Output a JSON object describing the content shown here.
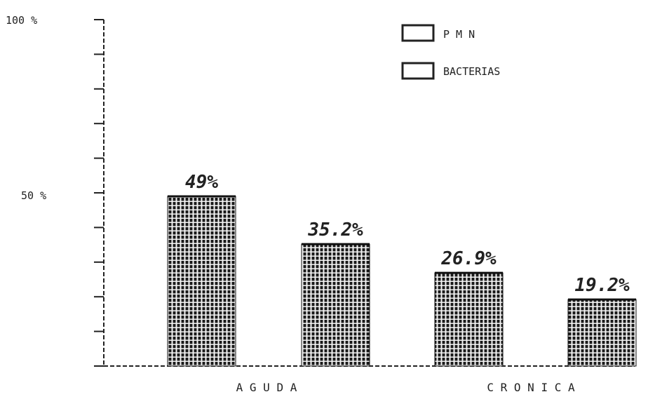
{
  "chart_data": {
    "type": "bar",
    "title": "",
    "xlabel": "",
    "ylabel": "",
    "ylim": [
      0,
      100
    ],
    "y_tick_labels": [
      "100 %",
      "50 %"
    ],
    "legend": {
      "placement": "top-right",
      "entries": [
        "P M N",
        "BACTERIAS"
      ]
    },
    "groups": [
      {
        "label": "A G U D A",
        "categories": [
          "P M N",
          "BACTERIAS"
        ]
      },
      {
        "label": "C R O N I C A",
        "categories": [
          "P M N",
          "BACTERIAS"
        ]
      }
    ],
    "bars": [
      {
        "group": "A G U D A",
        "series": "P M N",
        "value": 49,
        "label": "49%"
      },
      {
        "group": "A G U D A",
        "series": "BACTERIAS",
        "value": 35.2,
        "label": "35.2%"
      },
      {
        "group": "C R O N I C A",
        "series": "P M N",
        "value": 26.9,
        "label": "26.9%"
      },
      {
        "group": "C R O N I C A",
        "series": "BACTERIAS",
        "value": 19.2,
        "label": "19.2%"
      }
    ],
    "grid": false
  }
}
